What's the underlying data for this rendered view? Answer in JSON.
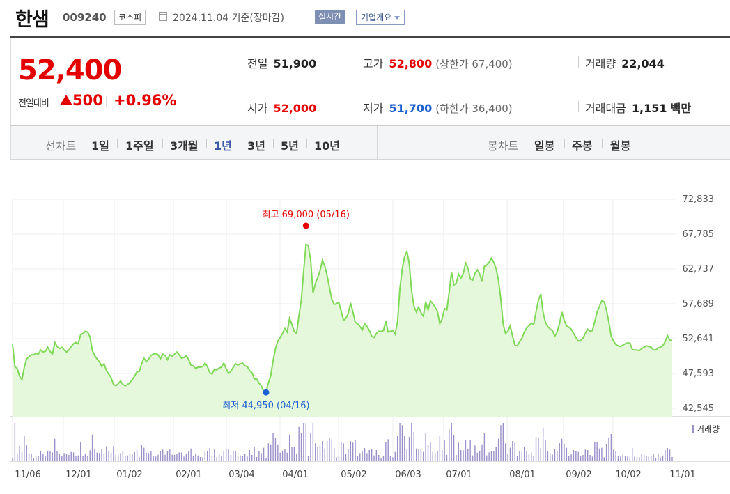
{
  "header": {
    "stock_name": "한샘",
    "stock_code": "009240",
    "market": "코스피",
    "basis": "2024.11.04 기준(장마감)",
    "realtime_label": "실시간",
    "overview_label": "기업개요"
  },
  "price": {
    "current": "52,400",
    "change_label": "전일대비",
    "change": "500",
    "change_rate": "+0.96%"
  },
  "stats": {
    "prev_label": "전일",
    "prev": "51,900",
    "high_label": "고가",
    "high": "52,800",
    "upper_limit": "(상한가 67,400)",
    "volume_label": "거래량",
    "volume": "22,044",
    "open_label": "시가",
    "open": "52,000",
    "low_label": "저가",
    "low": "51,700",
    "lower_limit": "(하한가 36,400)",
    "amount_label": "거래대금",
    "amount": "1,151",
    "amount_unit": "백만"
  },
  "tabs": {
    "line_label": "선차트",
    "periods": [
      "1일",
      "1주일",
      "3개월",
      "1년",
      "3년",
      "5년",
      "10년"
    ],
    "active": "1년",
    "candle_label": "봉차트",
    "candles": [
      "일봉",
      "주봉",
      "월봉"
    ]
  },
  "colors": {
    "up": "#e50000",
    "down": "#1a5fd1",
    "line": "#7ed957",
    "fill": "#e6f8dc",
    "volume": "#9b8fc9"
  },
  "chart_data": {
    "type": "area",
    "x_ticks": [
      "11/06",
      "12/01",
      "01/02",
      "02/01",
      "03/04",
      "04/01",
      "05/02",
      "06/03",
      "07/01",
      "08/01",
      "09/02",
      "10/02",
      "11/01"
    ],
    "y_ticks": [
      "72,833",
      "67,785",
      "62,737",
      "57,689",
      "52,641",
      "47,593",
      "42,545"
    ],
    "ylim": [
      42545,
      72833
    ],
    "high_label": "최고 69,000 (05/16)",
    "high_value": 69000,
    "low_label": "최저 44,950 (04/16)",
    "low_value": 44950,
    "volume_legend": "거래량",
    "series": [
      {
        "values": [
          51800,
          48600,
          48300,
          47200,
          46700,
          48500,
          49700,
          50000,
          50300,
          50300,
          50500,
          50400,
          51000,
          50700,
          50800,
          51400,
          50800,
          50400,
          52100,
          51500,
          51200,
          51400,
          51000,
          50700,
          51000,
          51500,
          51900,
          52100,
          51900,
          53200,
          53400,
          53700,
          53600,
          52900,
          50900,
          50200,
          49700,
          49300,
          48600,
          49000,
          48000,
          47500,
          47000,
          46000,
          45800,
          46100,
          46500,
          46000,
          45800,
          46000,
          46300,
          46700,
          47200,
          47800,
          47900,
          49000,
          49800,
          49300,
          49700,
          50200,
          50400,
          50500,
          50300,
          49700,
          50400,
          50200,
          49600,
          50300,
          50100,
          50400,
          50700,
          50300,
          49800,
          49900,
          50200,
          49600,
          48800,
          48700,
          48300,
          48500,
          48500,
          48600,
          49100,
          48600,
          47700,
          47500,
          48200,
          48100,
          48400,
          48500,
          49100,
          48300,
          47600,
          47900,
          48500,
          49000,
          48800,
          49000,
          49100,
          48700,
          48600,
          48000,
          47700,
          46800,
          46800,
          46200,
          45800,
          45000,
          44950,
          46200,
          47300,
          49500,
          51200,
          52300,
          52800,
          53400,
          54100,
          53600,
          55600,
          54700,
          53700,
          53400,
          56000,
          58200,
          62400,
          66300,
          66100,
          64000,
          59300,
          60600,
          61500,
          62500,
          64000,
          63200,
          61800,
          60000,
          58400,
          57600,
          57700,
          57900,
          56600,
          55300,
          55600,
          56300,
          57800,
          56500,
          55000,
          54800,
          54400,
          53900,
          54800,
          54400,
          53800,
          53000,
          52800,
          53400,
          53700,
          53700,
          53800,
          55200,
          53600,
          53700,
          53800,
          53300,
          55100,
          59900,
          62700,
          64500,
          65300,
          63500,
          59600,
          57300,
          56500,
          57200,
          56400,
          55900,
          58000,
          56800,
          58100,
          57700,
          57200,
          56600,
          54800,
          55500,
          57000,
          56800,
          59300,
          62300,
          60400,
          60700,
          62000,
          61400,
          62100,
          63600,
          62900,
          61300,
          61100,
          62100,
          62600,
          62000,
          60900,
          63100,
          63300,
          63700,
          64300,
          63700,
          62800,
          61100,
          58300,
          54700,
          53400,
          53700,
          54500,
          53000,
          51700,
          51600,
          52200,
          52700,
          53600,
          54200,
          54500,
          54900,
          54700,
          56500,
          58200,
          59100,
          56500,
          55000,
          54400,
          54000,
          53800,
          53000,
          53600,
          54800,
          56500,
          55300,
          54500,
          54300,
          54000,
          53400,
          52800,
          52300,
          52400,
          52700,
          53400,
          54000,
          53700,
          53800,
          55100,
          56500,
          57300,
          58100,
          58000,
          56800,
          55100,
          53000,
          52300,
          51800,
          51600,
          51500,
          51700,
          51900,
          52000,
          52000,
          51100,
          51000,
          51000,
          50900,
          51200,
          51400,
          51600,
          51500,
          51400,
          51000,
          51000,
          51300,
          51400,
          51600,
          52200,
          53100,
          52400,
          52400
        ]
      }
    ]
  }
}
